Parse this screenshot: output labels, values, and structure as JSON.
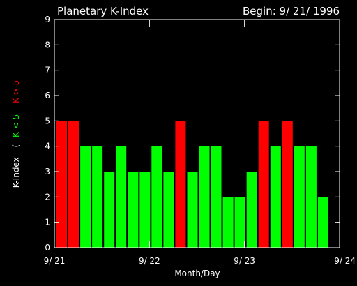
{
  "chart_data": {
    "type": "bar",
    "title": "Planetary K-Index",
    "begin_label": "Begin: 9/ 21/ 1996",
    "xlabel": "Month/Day",
    "ylabel": {
      "main": "K-Index",
      "paren": "(",
      "low": "K < 5",
      "high": "K > 5"
    },
    "ylim": [
      0,
      9
    ],
    "y_ticks": [
      "0",
      "1",
      "2",
      "3",
      "4",
      "5",
      "6",
      "7",
      "8",
      "9"
    ],
    "x_ticks": [
      "9/ 21",
      "9/ 22",
      "9/ 23",
      "9/ 24"
    ],
    "x_range_days": [
      0,
      3
    ],
    "bars_per_day": 8,
    "threshold": 5,
    "colors": {
      "low": "#00ff00",
      "high": "#ff0000",
      "axis": "#ffffff",
      "background": "#000000"
    },
    "values": [
      5,
      5,
      4,
      4,
      3,
      4,
      3,
      3,
      4,
      3,
      5,
      3,
      4,
      4,
      2,
      2,
      3,
      5,
      4,
      5,
      4,
      4,
      2
    ]
  }
}
